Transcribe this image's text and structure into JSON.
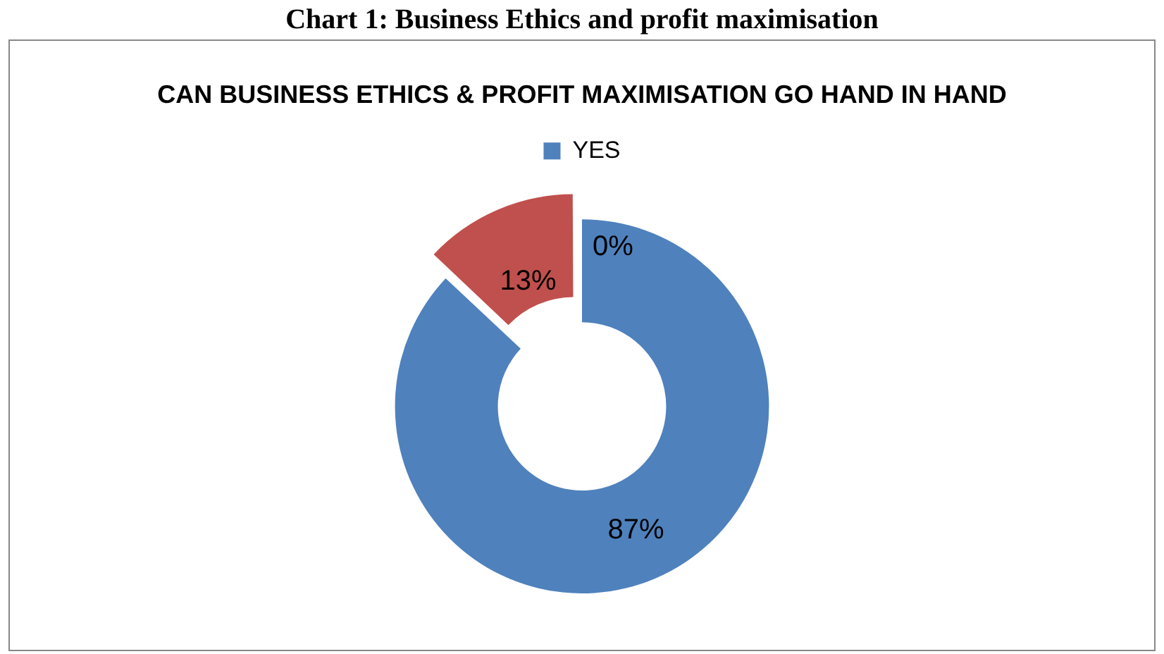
{
  "chart_data": {
    "type": "donut",
    "title": "CAN BUSINESS ETHICS & PROFIT MAXIMISATION GO HAND IN HAND",
    "annotations": [
      "Chart 1: Business Ethics and profit maximisation"
    ],
    "categories": [
      "YES",
      null,
      null
    ],
    "values": [
      87,
      13,
      0
    ],
    "colors": [
      "#4f81bd",
      "#c0504d",
      "#9bbb59"
    ],
    "value_labels": [
      "87%",
      "13%",
      "0%"
    ],
    "legend": "top"
  }
}
